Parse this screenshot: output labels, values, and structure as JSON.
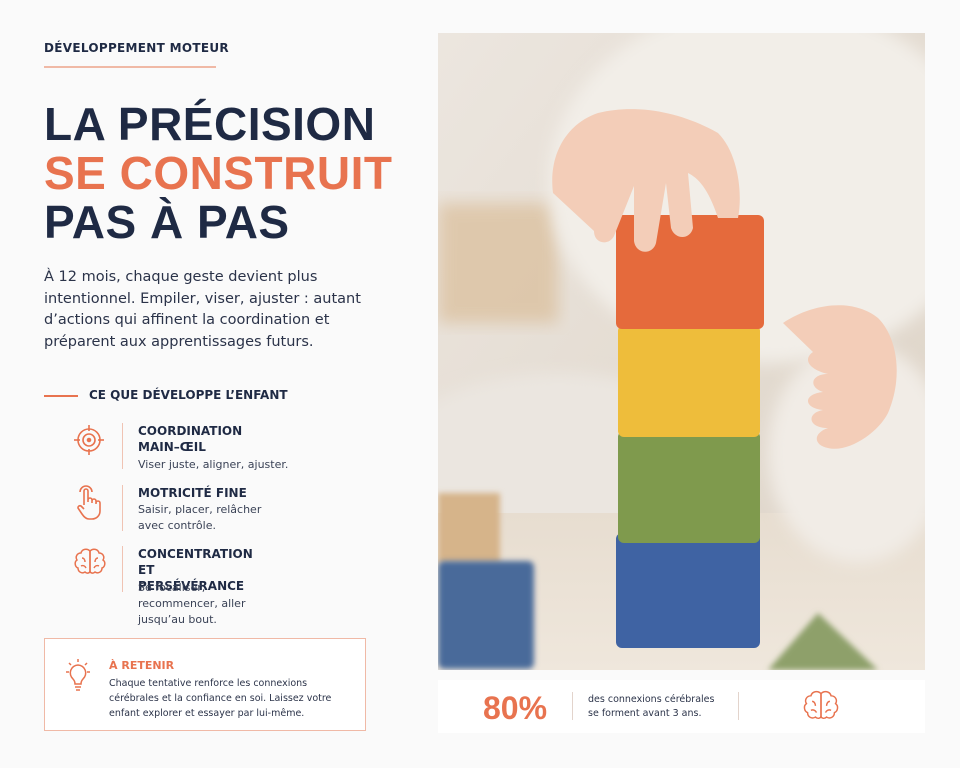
{
  "eyebrow": "DÉVELOPPEMENT MOTEUR",
  "title": {
    "line1": "LA PRÉCISION",
    "line2": "SE CONSTRUIT",
    "line3": "PAS À PAS"
  },
  "intro": "À 12 mois, chaque geste devient plus intentionnel. Empiler, viser, ajuster : autant d’actions qui affinent la coordination et préparent aux apprentissages futurs.",
  "section_title": "CE QUE DÉVELOPPE L’ENFANT",
  "skills": [
    {
      "title": "COORDINATION MAIN–ŒIL",
      "description": "Viser juste, aligner, ajuster."
    },
    {
      "title": "MOTRICITÉ FINE",
      "description": "Saisir, placer, relâcher avec contrôle."
    },
    {
      "title": "CONCENTRATION ET PERSÉVÉRANCE",
      "description": "Se focaliser, recommencer, aller jusqu’au bout."
    }
  ],
  "callout": {
    "title": "À RETENIR",
    "text": "Chaque tentative renforce les connexions cérébrales et la confiance en soi. Laissez votre enfant explorer et essayer par lui-même."
  },
  "stat": {
    "value": "80%",
    "text": "des connexions cérébrales se forment avant 3 ans."
  }
}
